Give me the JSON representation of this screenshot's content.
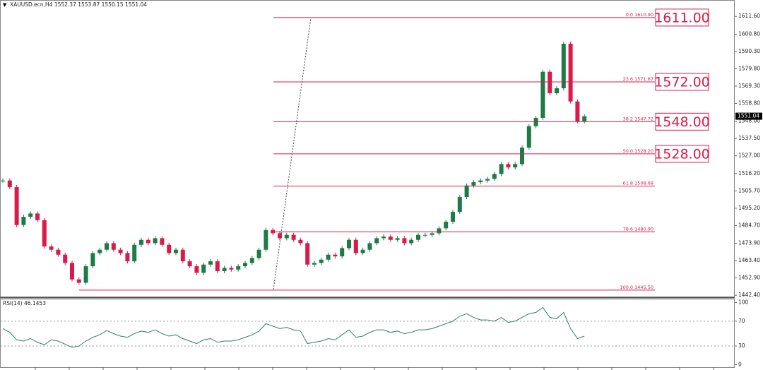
{
  "header": "XAUUSD.ecn,H4  1552.37 1553.87 1550.15 1551.04",
  "chart_data": [
    {
      "type": "candlestick",
      "closes": [
        1512,
        1508,
        1485,
        1490,
        1492,
        1488,
        1472,
        1470,
        1467,
        1462,
        1452,
        1450,
        1460,
        1468,
        1470,
        1474,
        1470,
        1468,
        1463,
        1473,
        1476,
        1474,
        1477,
        1473,
        1468,
        1470,
        1463,
        1460,
        1456,
        1461,
        1463,
        1457,
        1459,
        1458,
        1460,
        1462,
        1465,
        1470,
        1482,
        1480,
        1477,
        1479,
        1476,
        1474,
        1461,
        1462,
        1464,
        1467,
        1466,
        1471,
        1476,
        1468,
        1470,
        1474,
        1477,
        1478,
        1476,
        1477,
        1474,
        1476,
        1479,
        1479,
        1480,
        1483,
        1487,
        1493,
        1502,
        1509,
        1511,
        1512,
        1513,
        1516,
        1522,
        1520,
        1522,
        1532,
        1545,
        1550,
        1578,
        1565,
        1568,
        1595,
        1560,
        1548,
        1551
      ],
      "up_color": "#1e7a46",
      "down_color": "#d81b4a",
      "ylim": [
        1441.6,
        1620.7
      ],
      "yticks": [
        {
          "value": 1611.6,
          "label": "1611.60"
        },
        {
          "value": 1600.8,
          "label": "1600.80"
        },
        {
          "value": 1590.3,
          "label": "1590.30"
        },
        {
          "value": 1579.8,
          "label": "1579.80"
        },
        {
          "value": 1569.3,
          "label": "1569.30"
        },
        {
          "value": 1558.8,
          "label": "1558.80"
        },
        {
          "value": 1548,
          "label": "1548.00"
        },
        {
          "value": 1537.5,
          "label": "1537.50"
        },
        {
          "value": 1527,
          "label": "1527.00"
        },
        {
          "value": 1516.2,
          "label": "1516.20"
        },
        {
          "value": 1505.7,
          "label": "1505.70"
        },
        {
          "value": 1495.2,
          "label": "1495.20"
        },
        {
          "value": 1484.7,
          "label": "1484.70"
        },
        {
          "value": 1473.9,
          "label": "1473.90"
        },
        {
          "value": 1463.4,
          "label": "1463.40"
        },
        {
          "value": 1452.9,
          "label": "1452.90"
        },
        {
          "value": 1442.4,
          "label": "1442.40"
        }
      ],
      "last_price": 1551.04,
      "level_color": "#d81b4a",
      "fib_levels": [
        {
          "label": "0.0  1610.90",
          "price": 1610.9,
          "tag": "1611.00"
        },
        {
          "label": "23.6  1571.87",
          "price": 1571.87,
          "tag": "1572.00"
        },
        {
          "label": "38.2  1547.72",
          "price": 1547.72,
          "tag": "1548.00"
        },
        {
          "label": "50.0  1528.20",
          "price": 1528.2,
          "tag": "1528.00"
        },
        {
          "label": "61.8  1508.68",
          "price": 1508.68
        },
        {
          "label": "78.6  1480.90",
          "price": 1480.9
        },
        {
          "label": "100.0  1445.50",
          "price": 1445.5
        }
      ]
    },
    {
      "type": "rsi",
      "title": "RSI(14) 46.1453",
      "values": [
        58,
        52,
        40,
        38,
        42,
        36,
        32,
        40,
        38,
        33,
        28,
        30,
        38,
        44,
        48,
        55,
        50,
        46,
        44,
        50,
        54,
        52,
        56,
        50,
        46,
        48,
        42,
        38,
        34,
        40,
        42,
        36,
        38,
        38,
        40,
        44,
        48,
        54,
        66,
        62,
        58,
        60,
        56,
        54,
        34,
        36,
        38,
        42,
        40,
        48,
        56,
        44,
        46,
        52,
        56,
        56,
        52,
        54,
        50,
        52,
        56,
        56,
        58,
        62,
        66,
        70,
        78,
        82,
        76,
        72,
        72,
        70,
        76,
        68,
        70,
        76,
        82,
        84,
        92,
        76,
        74,
        84,
        58,
        42,
        46
      ],
      "color": "#2a7f6f",
      "ylim": [
        -4,
        105
      ],
      "yticks": [
        100,
        70,
        30,
        0
      ],
      "levels": [
        70,
        30
      ]
    }
  ]
}
